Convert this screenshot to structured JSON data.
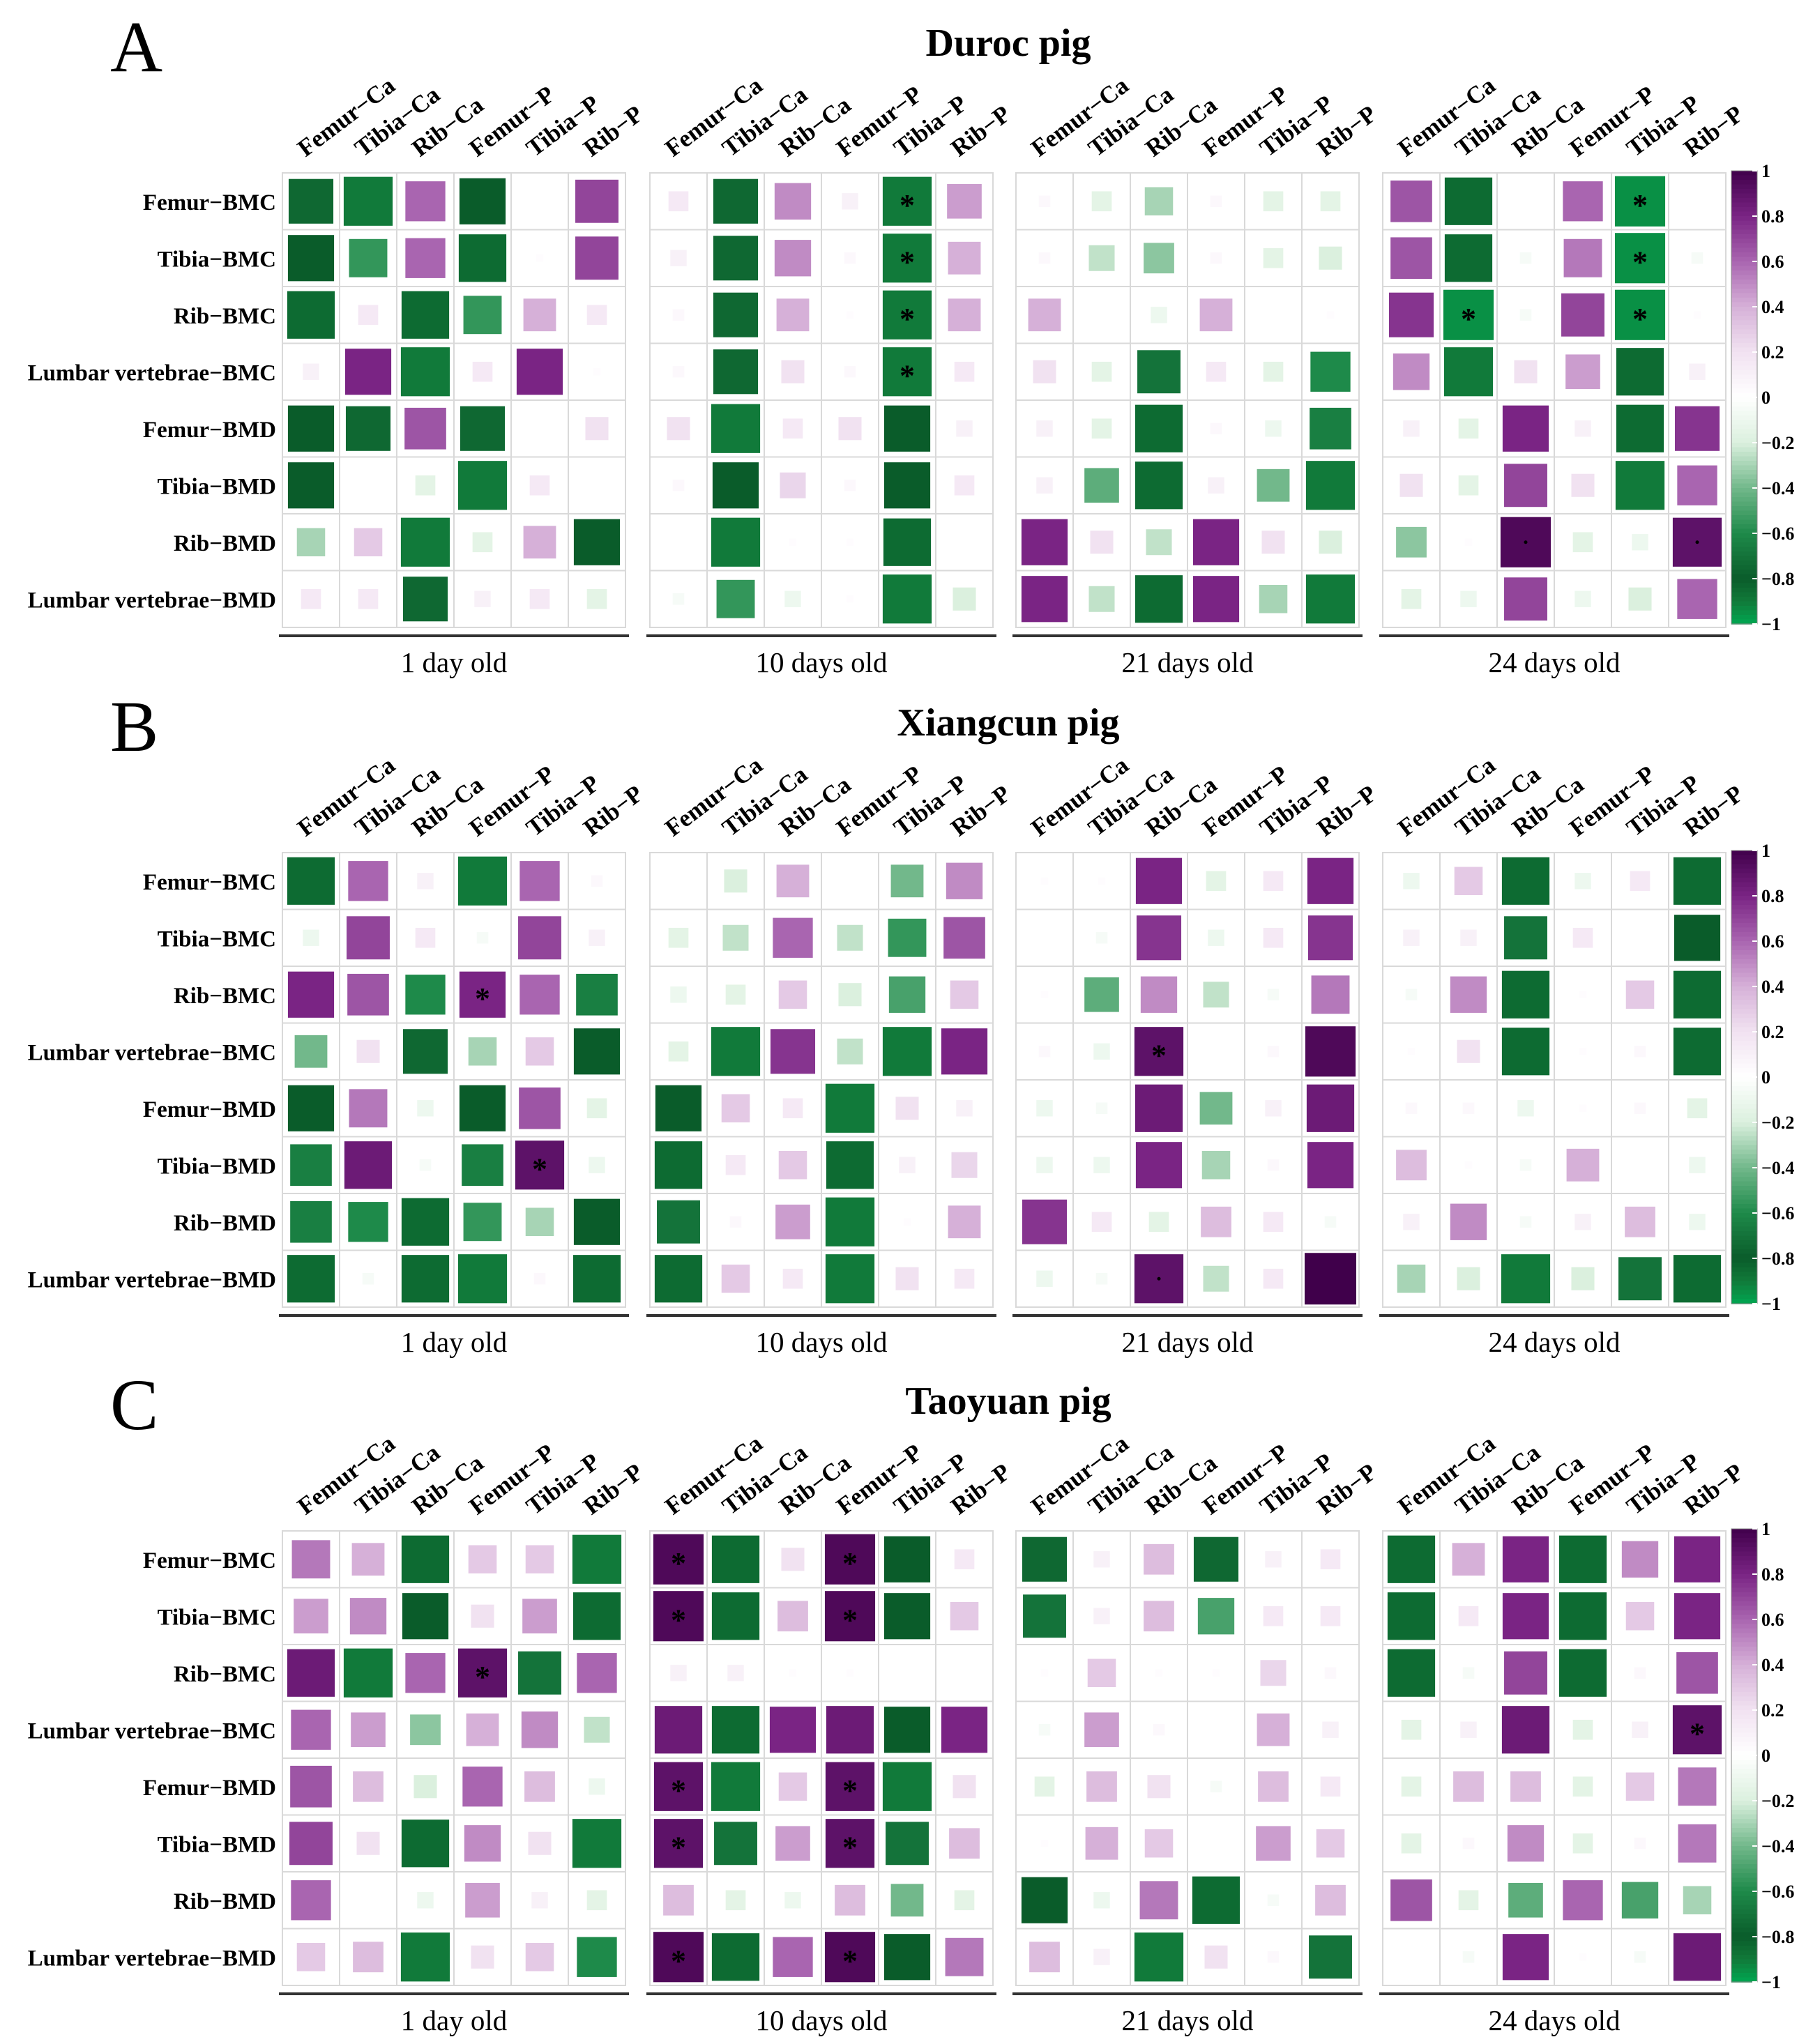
{
  "row_labels": [
    "Femur−BMC",
    "Tibia−BMC",
    "Rib−BMC",
    "Lumbar vertebrae−BMC",
    "Femur−BMD",
    "Tibia−BMD",
    "Rib−BMD",
    "Lumbar vertebrae−BMD"
  ],
  "col_labels": [
    "Femur−Ca",
    "Tibia−Ca",
    "Rib−Ca",
    "Femur−P",
    "Tibia−P",
    "Rib−P"
  ],
  "age_labels": [
    "1 day old",
    "10 days old",
    "21 days old",
    "24 days old"
  ],
  "colorbar": {
    "ticks": [
      "1",
      "0.8",
      "0.6",
      "0.4",
      "0.2",
      "0",
      "−0.2",
      "−0.4",
      "−0.6",
      "−0.8",
      "−1"
    ],
    "colors": {
      "positive": "#40004b",
      "mid": "#ffffff",
      "negative": "#1b7837",
      "neg_end": "#00a651"
    }
  },
  "chart_data": [
    {
      "type": "heatmap",
      "panel_letter": "A",
      "title": "Duroc pig",
      "significance_marker": "*",
      "groups": [
        {
          "age": "1 day old",
          "values": [
            [
              -0.75,
              -0.9,
              0.6,
              -0.8,
              0.0,
              0.7
            ],
            [
              -0.8,
              -0.55,
              0.6,
              -0.85,
              0.02,
              0.7
            ],
            [
              -0.85,
              0.15,
              -0.85,
              -0.55,
              0.4,
              0.15
            ],
            [
              0.1,
              0.8,
              -0.9,
              0.15,
              0.8,
              0.02
            ],
            [
              -0.8,
              -0.75,
              0.65,
              -0.75,
              0.0,
              0.2
            ],
            [
              -0.8,
              0.0,
              -0.15,
              -0.9,
              0.15,
              0.0
            ],
            [
              -0.3,
              0.3,
              -0.9,
              -0.15,
              0.4,
              -0.8
            ],
            [
              0.15,
              0.15,
              -0.75,
              0.1,
              0.15,
              -0.15
            ]
          ],
          "stars": []
        },
        {
          "age": "10 days old",
          "values": [
            [
              0.15,
              -0.75,
              0.5,
              0.1,
              -0.9,
              0.45
            ],
            [
              0.1,
              -0.75,
              0.5,
              0.05,
              -0.9,
              0.4
            ],
            [
              0.05,
              -0.75,
              0.4,
              0.02,
              -0.9,
              0.4
            ],
            [
              0.05,
              -0.75,
              0.2,
              0.05,
              -0.9,
              0.15
            ],
            [
              0.2,
              -0.9,
              0.15,
              0.2,
              -0.8,
              0.1
            ],
            [
              0.05,
              -0.8,
              0.25,
              0.05,
              -0.8,
              0.15
            ],
            [
              0.0,
              -0.9,
              0.02,
              0.02,
              -0.85,
              0.0
            ],
            [
              -0.05,
              -0.55,
              -0.1,
              0.02,
              -0.9,
              -0.2
            ]
          ],
          "stars": [
            [
              0,
              4
            ],
            [
              1,
              4
            ],
            [
              2,
              4
            ],
            [
              3,
              4
            ]
          ]
        },
        {
          "age": "21 days old",
          "values": [
            [
              0.05,
              -0.15,
              -0.3,
              0.05,
              -0.15,
              -0.15
            ],
            [
              0.05,
              -0.25,
              -0.35,
              0.05,
              -0.15,
              -0.2
            ],
            [
              0.4,
              0.0,
              -0.1,
              0.4,
              0.0,
              0.02
            ],
            [
              0.2,
              -0.15,
              -0.7,
              0.15,
              -0.15,
              -0.6
            ],
            [
              0.1,
              -0.15,
              -0.85,
              0.05,
              -0.1,
              -0.65
            ],
            [
              0.1,
              -0.45,
              -0.85,
              0.1,
              -0.4,
              -0.9
            ],
            [
              0.8,
              0.2,
              -0.25,
              0.8,
              0.2,
              -0.2
            ],
            [
              0.8,
              -0.25,
              -0.85,
              0.8,
              -0.3,
              -0.9
            ]
          ],
          "stars": []
        },
        {
          "age": "24 days old",
          "values": [
            [
              0.65,
              -0.85,
              0.0,
              0.6,
              -0.95,
              0.0
            ],
            [
              0.65,
              -0.85,
              -0.05,
              0.55,
              -0.95,
              -0.05
            ],
            [
              0.75,
              -0.95,
              -0.05,
              0.7,
              -0.95,
              0.02
            ],
            [
              0.5,
              -0.9,
              0.2,
              0.45,
              -0.85,
              0.1
            ],
            [
              0.1,
              -0.15,
              0.8,
              0.1,
              -0.85,
              0.75
            ],
            [
              0.2,
              -0.15,
              0.7,
              0.2,
              -0.9,
              0.6
            ],
            [
              -0.35,
              0.02,
              0.95,
              -0.15,
              -0.1,
              0.9
            ],
            [
              -0.15,
              -0.1,
              0.7,
              -0.1,
              -0.2,
              0.6
            ]
          ],
          "stars": [
            [
              0,
              4
            ],
            [
              1,
              4
            ],
            [
              2,
              1
            ],
            [
              2,
              4
            ]
          ],
          "dots": [
            [
              6,
              2
            ],
            [
              6,
              5
            ]
          ]
        }
      ]
    },
    {
      "type": "heatmap",
      "panel_letter": "B",
      "title": "Xiangcun pig",
      "significance_marker": "*",
      "groups": [
        {
          "age": "1 day old",
          "values": [
            [
              -0.85,
              0.6,
              0.1,
              -0.9,
              0.6,
              0.05
            ],
            [
              -0.1,
              0.7,
              0.15,
              -0.05,
              0.7,
              0.1
            ],
            [
              0.8,
              0.65,
              -0.6,
              0.8,
              0.6,
              -0.65
            ],
            [
              -0.4,
              0.2,
              -0.75,
              -0.3,
              0.3,
              -0.8
            ],
            [
              -0.8,
              0.55,
              -0.1,
              -0.8,
              0.65,
              -0.15
            ],
            [
              -0.65,
              0.85,
              -0.05,
              -0.65,
              0.9,
              -0.1
            ],
            [
              -0.65,
              -0.6,
              -0.85,
              -0.55,
              -0.3,
              -0.8
            ],
            [
              -0.85,
              -0.05,
              -0.85,
              -0.9,
              0.05,
              -0.85
            ]
          ],
          "stars": [
            [
              2,
              3
            ],
            [
              5,
              4
            ]
          ]
        },
        {
          "age": "10 days old",
          "values": [
            [
              0.0,
              -0.2,
              0.4,
              0.0,
              -0.4,
              0.5
            ],
            [
              -0.15,
              -0.25,
              0.6,
              -0.25,
              -0.55,
              0.65
            ],
            [
              -0.1,
              -0.15,
              0.3,
              -0.2,
              -0.5,
              0.3
            ],
            [
              -0.15,
              -0.9,
              0.75,
              -0.25,
              -0.9,
              0.8
            ],
            [
              -0.8,
              0.3,
              0.15,
              -0.9,
              0.2,
              0.1
            ],
            [
              -0.85,
              0.15,
              0.3,
              -0.85,
              0.1,
              0.25
            ],
            [
              -0.7,
              0.05,
              0.45,
              -0.9,
              0.02,
              0.4
            ],
            [
              -0.85,
              0.3,
              0.15,
              -0.9,
              0.2,
              0.15
            ]
          ],
          "stars": []
        },
        {
          "age": "21 days old",
          "values": [
            [
              0.02,
              0.02,
              0.8,
              -0.15,
              0.15,
              0.8
            ],
            [
              0.0,
              -0.05,
              0.75,
              -0.1,
              0.15,
              0.75
            ],
            [
              0.02,
              -0.45,
              0.5,
              -0.25,
              -0.05,
              0.55
            ],
            [
              0.05,
              -0.1,
              0.9,
              0.0,
              0.05,
              0.95
            ],
            [
              -0.1,
              -0.05,
              0.85,
              -0.4,
              0.1,
              0.85
            ],
            [
              -0.1,
              -0.1,
              0.8,
              -0.3,
              0.05,
              0.8
            ],
            [
              0.75,
              0.15,
              -0.15,
              0.35,
              0.15,
              -0.05
            ],
            [
              -0.1,
              -0.05,
              0.9,
              -0.25,
              0.15,
              1.0
            ]
          ],
          "stars": [
            [
              3,
              2
            ]
          ],
          "dots": [
            [
              7,
              2
            ]
          ]
        },
        {
          "age": "24 days old",
          "values": [
            [
              -0.1,
              0.3,
              -0.85,
              -0.1,
              0.15,
              -0.85
            ],
            [
              0.1,
              0.1,
              -0.7,
              0.15,
              0.0,
              -0.8
            ],
            [
              -0.05,
              0.5,
              -0.85,
              0.02,
              0.3,
              -0.85
            ],
            [
              0.02,
              0.2,
              -0.85,
              0.02,
              0.05,
              -0.85
            ],
            [
              0.05,
              0.05,
              -0.1,
              0.02,
              0.05,
              -0.15
            ],
            [
              0.35,
              0.02,
              -0.05,
              0.4,
              0.0,
              -0.1
            ],
            [
              0.1,
              0.5,
              -0.05,
              0.1,
              0.35,
              -0.1
            ],
            [
              -0.3,
              -0.2,
              -0.9,
              -0.2,
              -0.7,
              -0.85
            ]
          ],
          "stars": []
        }
      ]
    },
    {
      "type": "heatmap",
      "panel_letter": "C",
      "title": "Taoyuan pig",
      "significance_marker": "*",
      "groups": [
        {
          "age": "1 day old",
          "values": [
            [
              0.55,
              0.4,
              -0.85,
              0.3,
              0.3,
              -0.9
            ],
            [
              0.45,
              0.5,
              -0.8,
              0.2,
              0.45,
              -0.85
            ],
            [
              0.85,
              -0.9,
              0.6,
              0.9,
              -0.7,
              0.6
            ],
            [
              0.6,
              0.45,
              -0.35,
              0.4,
              0.5,
              -0.25
            ],
            [
              0.65,
              0.35,
              -0.2,
              0.6,
              0.35,
              -0.1
            ],
            [
              0.7,
              0.2,
              -0.85,
              0.5,
              0.2,
              -0.9
            ],
            [
              0.6,
              0.0,
              -0.1,
              0.45,
              0.1,
              -0.15
            ],
            [
              0.3,
              0.35,
              -0.9,
              0.2,
              0.3,
              -0.6
            ]
          ],
          "stars": [
            [
              2,
              3
            ]
          ]
        },
        {
          "age": "10 days old",
          "values": [
            [
              0.95,
              -0.85,
              0.2,
              0.95,
              -0.8,
              0.15
            ],
            [
              0.95,
              -0.85,
              0.35,
              0.95,
              -0.8,
              0.3
            ],
            [
              0.1,
              0.1,
              0.02,
              0.02,
              0.0,
              0.0
            ],
            [
              0.85,
              -0.85,
              0.8,
              0.85,
              -0.8,
              0.8
            ],
            [
              0.9,
              -0.9,
              0.3,
              0.9,
              -0.9,
              0.2
            ],
            [
              0.9,
              -0.7,
              0.45,
              0.9,
              -0.7,
              0.35
            ],
            [
              0.35,
              -0.15,
              -0.1,
              0.35,
              -0.4,
              -0.15
            ],
            [
              0.95,
              -0.85,
              0.6,
              0.95,
              -0.8,
              0.55
            ]
          ],
          "stars": [
            [
              0,
              0
            ],
            [
              0,
              3
            ],
            [
              1,
              0
            ],
            [
              1,
              3
            ],
            [
              4,
              0
            ],
            [
              4,
              3
            ],
            [
              5,
              0
            ],
            [
              5,
              3
            ],
            [
              7,
              0
            ],
            [
              7,
              3
            ]
          ]
        },
        {
          "age": "21 days old",
          "values": [
            [
              -0.75,
              0.1,
              0.35,
              -0.75,
              0.1,
              0.15
            ],
            [
              -0.7,
              0.1,
              0.35,
              -0.5,
              0.15,
              0.15
            ],
            [
              0.02,
              0.3,
              0.02,
              0.02,
              0.25,
              0.05
            ],
            [
              -0.05,
              0.45,
              0.05,
              0.0,
              0.4,
              0.1
            ],
            [
              -0.15,
              0.35,
              0.2,
              -0.05,
              0.35,
              0.15
            ],
            [
              0.02,
              0.4,
              0.3,
              0.0,
              0.45,
              0.3
            ],
            [
              -0.8,
              -0.1,
              0.55,
              -0.85,
              -0.05,
              0.35
            ],
            [
              0.35,
              0.1,
              -0.9,
              0.2,
              0.05,
              -0.7
            ]
          ],
          "stars": []
        },
        {
          "age": "24 days old",
          "values": [
            [
              -0.85,
              0.4,
              0.8,
              -0.85,
              0.5,
              0.8
            ],
            [
              -0.85,
              0.15,
              0.8,
              -0.85,
              0.3,
              0.8
            ],
            [
              -0.85,
              -0.05,
              0.7,
              -0.85,
              0.05,
              0.65
            ],
            [
              -0.15,
              0.1,
              0.85,
              -0.15,
              0.1,
              0.9
            ],
            [
              -0.15,
              0.35,
              0.35,
              -0.15,
              0.3,
              0.55
            ],
            [
              -0.15,
              0.05,
              0.5,
              -0.15,
              0.05,
              0.55
            ],
            [
              0.65,
              -0.15,
              -0.45,
              0.6,
              -0.5,
              -0.3
            ],
            [
              0.0,
              -0.05,
              0.8,
              0.02,
              -0.05,
              0.85
            ]
          ],
          "stars": [
            [
              3,
              5
            ]
          ]
        }
      ]
    }
  ]
}
